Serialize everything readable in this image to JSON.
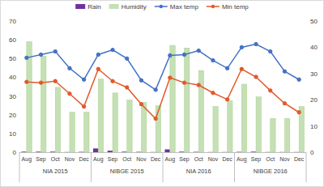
{
  "chart_data": {
    "type": "bar",
    "categories": [
      "Aug",
      "Sep",
      "Oct",
      "Nov",
      "Dec",
      "Aug",
      "Sep",
      "Oct",
      "Nov",
      "Dec",
      "Aug",
      "Sep",
      "Oct",
      "Nov",
      "Dec",
      "Aug",
      "Sep",
      "Oct",
      "Nov",
      "Dec"
    ],
    "category_groups": [
      "NIA 2015",
      "NIBGE 2015",
      "NIA 2016",
      "NIBGE 2016"
    ],
    "series": [
      {
        "name": "Rain",
        "type": "bar",
        "color": "#7030a0",
        "values": [
          0.3,
          0.3,
          0.3,
          0.1,
          0.2,
          2.0,
          0.8,
          0.3,
          0.2,
          0.1,
          1.5,
          0.3,
          0.2,
          0.1,
          0.1,
          0.2,
          0.3,
          0.1,
          0.1,
          0.1
        ]
      },
      {
        "name": "Humidity",
        "type": "bar",
        "color": "#c5e0b4",
        "values": [
          59,
          51.3,
          34.6,
          21.4,
          21.4,
          39,
          31.6,
          27.8,
          26.5,
          24.8,
          57,
          55.6,
          43.6,
          24.4,
          27.4,
          36.3,
          29.5,
          18,
          18,
          24.4
        ]
      },
      {
        "name": "Max temp",
        "type": "line",
        "axis": "y2",
        "color": "#4472c4",
        "marker": "circle",
        "values": [
          36,
          37.2,
          38.4,
          32,
          27.7,
          37.2,
          39,
          35.7,
          27.4,
          23.8,
          36.9,
          37.2,
          38.7,
          35,
          32,
          40,
          41.2,
          38.4,
          30.8,
          27.7
        ]
      },
      {
        "name": "Min temp",
        "type": "line",
        "axis": "y2",
        "color": "#e15a2b",
        "marker": "circle",
        "values": [
          26.8,
          26.5,
          27.1,
          22.3,
          17.4,
          31.7,
          27.1,
          24.7,
          18.3,
          12.8,
          28.4,
          26.5,
          25.6,
          22.6,
          20.1,
          31.7,
          28.7,
          23.5,
          18.6,
          15.2
        ]
      }
    ],
    "ylim": [
      0,
      70
    ],
    "yticks": [
      0,
      10,
      20,
      30,
      40,
      50,
      60,
      70
    ],
    "y2lim": [
      0,
      50
    ],
    "y2ticks": [
      0,
      10,
      20,
      30,
      40,
      50
    ],
    "grid": false,
    "legend": "top"
  }
}
